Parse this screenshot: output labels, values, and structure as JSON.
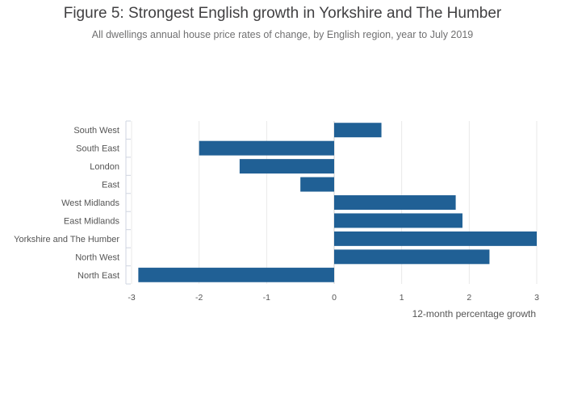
{
  "chart_data": {
    "type": "bar",
    "orientation": "horizontal",
    "title": "Figure 5: Strongest English growth in Yorkshire and The Humber",
    "subtitle": "All dwellings annual house price rates of change, by English region, year to July 2019",
    "xlabel": "12-month percentage growth",
    "xlim": [
      -3,
      3
    ],
    "xticks": [
      -3,
      -2,
      -1,
      0,
      1,
      2,
      3
    ],
    "categories": [
      "South West",
      "South East",
      "London",
      "East",
      "West Midlands",
      "East Midlands",
      "Yorkshire and The Humber",
      "North West",
      "North East"
    ],
    "values": [
      0.7,
      -2.0,
      -1.4,
      -0.5,
      1.8,
      1.9,
      3.0,
      2.3,
      -2.9
    ],
    "bar_color": "#206095",
    "grid": true
  }
}
